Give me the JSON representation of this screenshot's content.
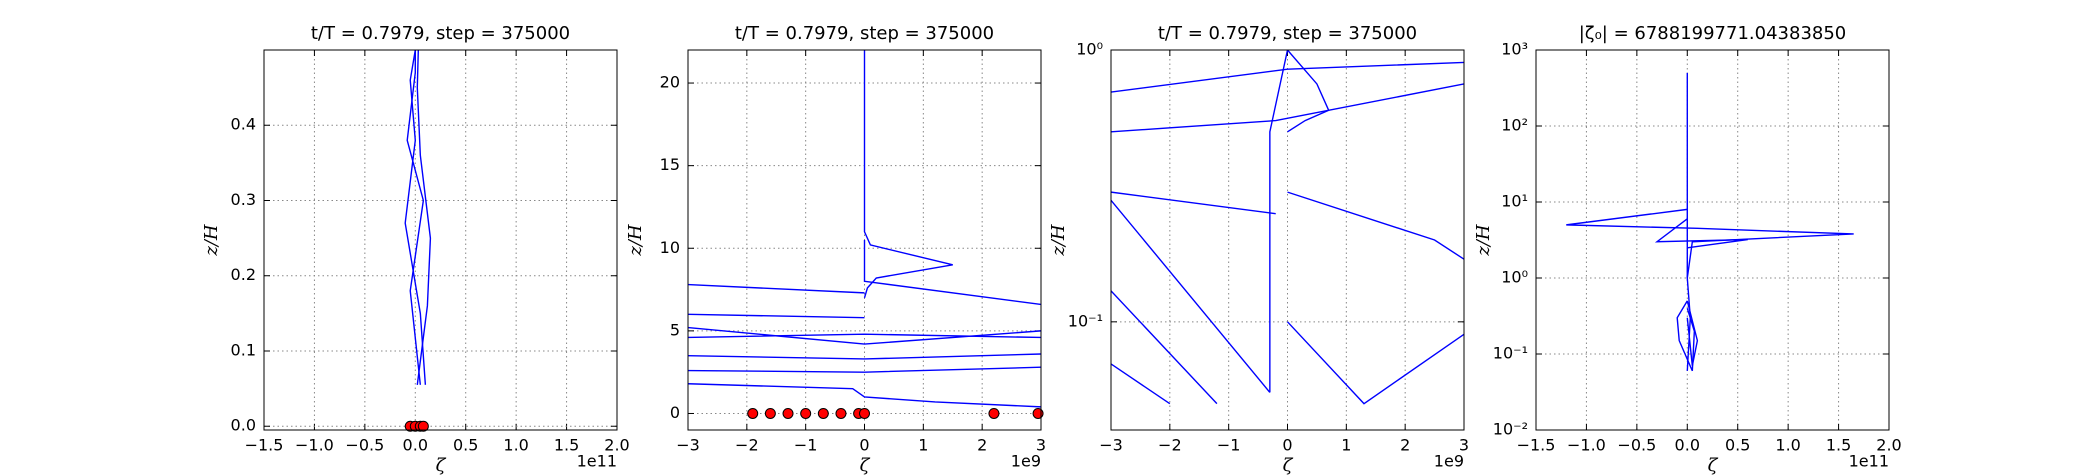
{
  "chart_data": [
    {
      "type": "line",
      "title": "t/T = 0.7979, step = 375000",
      "xlabel": "ζ",
      "ylabel": "z/H",
      "x_offset_text": "1e11",
      "xlim": [
        -1.5,
        2.0
      ],
      "ylim": [
        -0.005,
        0.5
      ],
      "ylog": false,
      "grid": true,
      "xticks": [
        {
          "value": -1.5,
          "label": "−1.5"
        },
        {
          "value": -1.0,
          "label": "−1.0"
        },
        {
          "value": -0.5,
          "label": "−0.5"
        },
        {
          "value": 0,
          "label": "0.0"
        },
        0.5,
        {
          "value": 1.0,
          "label": "1.0"
        },
        1.5,
        {
          "value": 2.0,
          "label": "2.0"
        }
      ],
      "yticks": [
        {
          "value": 0,
          "label": "0.0"
        },
        0.1,
        0.2,
        0.3,
        0.4
      ],
      "series": [
        {
          "color": "#0000ff",
          "x": [
            0.1,
            0.05,
            -0.1,
            0.0,
            -0.05,
            0.0
          ],
          "y": [
            0.055,
            0.15,
            0.27,
            0.38,
            0.46,
            0.5
          ]
        },
        {
          "color": "#0000ff",
          "x": [
            0.02,
            0.12,
            0.15,
            0.05,
            0.02,
            0.03
          ],
          "y": [
            0.055,
            0.16,
            0.25,
            0.36,
            0.45,
            0.5
          ]
        },
        {
          "color": "#0000ff",
          "x": [
            0.05,
            -0.05,
            0.08,
            -0.08,
            0.0,
            0.0
          ],
          "y": [
            0.055,
            0.18,
            0.3,
            0.38,
            0.47,
            0.5
          ]
        },
        {
          "color": "#ff0000",
          "linestyle": "none",
          "x": [
            -0.05,
            0.0,
            0.05,
            0.08
          ],
          "y": [
            0,
            0,
            0,
            0
          ]
        }
      ]
    },
    {
      "type": "line",
      "title": "t/T = 0.7979, step = 375000",
      "xlabel": "ζ",
      "ylabel": "z/H",
      "x_offset_text": "1e9",
      "xlim": [
        -3,
        3
      ],
      "ylim": [
        -1,
        22
      ],
      "ylog": false,
      "grid": true,
      "xticks": [
        {
          "value": -3,
          "label": "−3"
        },
        {
          "value": -2,
          "label": "−2"
        },
        {
          "value": -1,
          "label": "−1"
        },
        0,
        1,
        2,
        3
      ],
      "yticks": [
        0,
        5,
        10,
        15,
        20
      ],
      "series": [
        {
          "color": "#0000ff",
          "x": [
            0,
            0,
            0.1,
            1.5,
            0.2,
            0.05,
            0
          ],
          "y": [
            22,
            11,
            10.2,
            9,
            8.2,
            7.6,
            7
          ]
        },
        {
          "color": "#0000ff",
          "x": [
            -3,
            0
          ],
          "y": [
            7.8,
            7.3
          ]
        },
        {
          "color": "#0000ff",
          "x": [
            -3,
            0
          ],
          "y": [
            6,
            5.8
          ]
        },
        {
          "color": "#0000ff",
          "x": [
            -3,
            0,
            3
          ],
          "y": [
            4.6,
            4.8,
            4.6
          ]
        },
        {
          "color": "#0000ff",
          "x": [
            -3,
            0,
            3
          ],
          "y": [
            3.5,
            3.3,
            3.6
          ]
        },
        {
          "color": "#0000ff",
          "x": [
            -3,
            0,
            3
          ],
          "y": [
            2.6,
            2.5,
            2.8
          ]
        },
        {
          "color": "#0000ff",
          "x": [
            -3,
            -0.2,
            0,
            1.2,
            3
          ],
          "y": [
            1.8,
            1.5,
            1,
            0.7,
            0.4
          ]
        },
        {
          "color": "#0000ff",
          "x": [
            0,
            0,
            3
          ],
          "y": [
            10.5,
            8,
            6.6
          ]
        },
        {
          "color": "#0000ff",
          "x": [
            -3,
            0,
            3
          ],
          "y": [
            5.2,
            4.2,
            5.0
          ]
        },
        {
          "color": "#ff0000",
          "linestyle": "none",
          "x": [
            -1.9,
            -1.6,
            -1.3,
            -1.0,
            -0.7,
            -0.4,
            -0.1,
            0,
            2.2,
            2.95
          ],
          "y": [
            0,
            0,
            0,
            0,
            0,
            0,
            0,
            0,
            0,
            0
          ]
        }
      ]
    },
    {
      "type": "line",
      "title": "t/T = 0.7979, step = 375000",
      "xlabel": "ζ",
      "ylabel": "z/H",
      "x_offset_text": "1e9",
      "xlim": [
        -3,
        3
      ],
      "ylim": [
        0.04,
        1
      ],
      "ylog": true,
      "grid": true,
      "xticks": [
        {
          "value": -3,
          "label": "−3"
        },
        {
          "value": -2,
          "label": "−2"
        },
        {
          "value": -1,
          "label": "−1"
        },
        0,
        1,
        2,
        3
      ],
      "yticks": [
        {
          "value": 0.1,
          "label": "10⁻¹"
        },
        {
          "value": 1,
          "label": "10⁰"
        }
      ],
      "series": [
        {
          "color": "#0000ff",
          "x": [
            -0.3,
            -0.3,
            0
          ],
          "y": [
            0.055,
            0.5,
            1
          ]
        },
        {
          "color": "#0000ff",
          "x": [
            -3,
            -0.3
          ],
          "y": [
            0.28,
            0.055
          ]
        },
        {
          "color": "#0000ff",
          "x": [
            -3,
            -0.2,
            3
          ],
          "y": [
            0.5,
            0.55,
            0.75
          ]
        },
        {
          "color": "#0000ff",
          "x": [
            -3,
            0,
            3
          ],
          "y": [
            0.7,
            0.85,
            0.9
          ]
        },
        {
          "color": "#0000ff",
          "x": [
            -3,
            -1.2
          ],
          "y": [
            0.13,
            0.05
          ]
        },
        {
          "color": "#0000ff",
          "x": [
            -3,
            -2
          ],
          "y": [
            0.07,
            0.05
          ]
        },
        {
          "color": "#0000ff",
          "x": [
            0,
            1.3,
            3
          ],
          "y": [
            0.1,
            0.05,
            0.09
          ]
        },
        {
          "color": "#0000ff",
          "x": [
            0,
            0.5,
            0.7,
            0.3,
            0
          ],
          "y": [
            1,
            0.75,
            0.6,
            0.55,
            0.5
          ]
        },
        {
          "color": "#0000ff",
          "x": [
            0,
            2.5,
            3
          ],
          "y": [
            0.3,
            0.2,
            0.17
          ]
        },
        {
          "color": "#0000ff",
          "x": [
            -3,
            -0.2
          ],
          "y": [
            0.3,
            0.25
          ]
        }
      ]
    },
    {
      "type": "line",
      "title": "|ζ₀| = 6788199771.04383850",
      "xlabel": "ζ",
      "ylabel": "z/H",
      "x_offset_text": "1e11",
      "xlim": [
        -1.5,
        2.0
      ],
      "ylim": [
        0.01,
        1000
      ],
      "ylog": true,
      "grid": true,
      "xticks": [
        {
          "value": -1.5,
          "label": "−1.5"
        },
        {
          "value": -1.0,
          "label": "−1.0"
        },
        {
          "value": -0.5,
          "label": "−0.5"
        },
        {
          "value": 0,
          "label": "0.0"
        },
        0.5,
        {
          "value": 1.0,
          "label": "1.0"
        },
        1.5,
        {
          "value": 2.0,
          "label": "2.0"
        }
      ],
      "yticks": [
        {
          "value": 0.01,
          "label": "10⁻²"
        },
        {
          "value": 0.1,
          "label": "10⁻¹"
        },
        {
          "value": 1,
          "label": "10⁰"
        },
        {
          "value": 10,
          "label": "10¹"
        },
        {
          "value": 100,
          "label": "10²"
        },
        {
          "value": 1000,
          "label": "10³"
        }
      ],
      "series": [
        {
          "color": "#0000ff",
          "x": [
            0,
            0,
            0,
            0.03,
            0
          ],
          "y": [
            500,
            8,
            1,
            0.3,
            0.06
          ]
        },
        {
          "color": "#0000ff",
          "x": [
            0,
            -1.2,
            0.1,
            1.65,
            0.05,
            0
          ],
          "y": [
            8,
            5,
            4.5,
            3.8,
            3,
            1
          ]
        },
        {
          "color": "#0000ff",
          "x": [
            0,
            -0.3,
            0.6,
            0
          ],
          "y": [
            6,
            3,
            3.2,
            2.5
          ]
        },
        {
          "color": "#0000ff",
          "x": [
            0,
            -0.1,
            -0.08,
            0.05,
            0.07,
            0
          ],
          "y": [
            0.5,
            0.3,
            0.15,
            0.06,
            0.2,
            0.4
          ]
        },
        {
          "color": "#0000ff",
          "x": [
            0,
            0.1,
            0.05,
            0
          ],
          "y": [
            0.5,
            0.15,
            0.07,
            0.3
          ]
        }
      ]
    }
  ]
}
